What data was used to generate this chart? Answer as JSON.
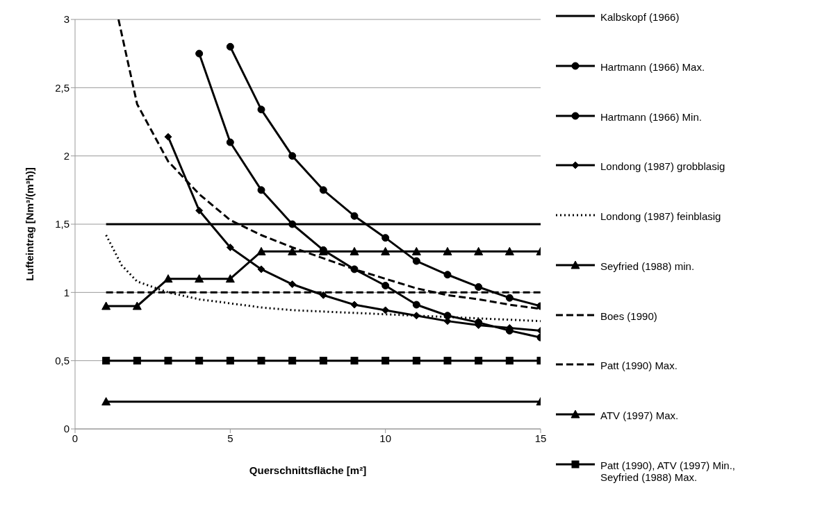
{
  "chart_data": {
    "type": "line",
    "xlabel": "Querschnittsfläche [m²]",
    "ylabel": "Lufteintrag [Nm³/(m³h)]",
    "xlim": [
      0,
      15
    ],
    "xticks": [
      0,
      5,
      10,
      15
    ],
    "ylim": [
      0,
      3
    ],
    "yticks": [
      0,
      {
        "value": 0.5,
        "label": "0,5"
      },
      1,
      {
        "value": 1.5,
        "label": "1,5"
      },
      2,
      {
        "value": 2.5,
        "label": "2,5"
      },
      3
    ],
    "grid": "y",
    "legend": "right",
    "series": [
      {
        "name": "Kalbskopf (1966)",
        "color": "#000000",
        "x": [
          1,
          15
        ],
        "values": [
          1.5,
          1.5
        ],
        "marker": "none",
        "line_style": "solid"
      },
      {
        "name": "Hartmann (1966) Max.",
        "color": "#000000",
        "x": [
          5,
          6,
          7,
          8,
          9,
          10,
          11,
          12,
          13,
          14,
          15
        ],
        "values": [
          2.8,
          2.34,
          2.0,
          1.75,
          1.56,
          1.4,
          1.23,
          1.13,
          1.04,
          0.96,
          0.9
        ],
        "marker": "circle",
        "line_style": "solid"
      },
      {
        "name": "Hartmann (1966) Min.",
        "color": "#000000",
        "x": [
          4,
          5,
          6,
          7,
          8,
          9,
          10,
          11,
          12,
          13,
          14,
          15
        ],
        "values": [
          2.75,
          2.1,
          1.75,
          1.5,
          1.31,
          1.17,
          1.05,
          0.91,
          0.83,
          0.78,
          0.72,
          0.67
        ],
        "marker": "circle",
        "line_style": "solid"
      },
      {
        "name": "Londong (1987) grobblasig",
        "color": "#000000",
        "x": [
          3,
          4,
          5,
          6,
          7,
          8,
          9,
          10,
          11,
          12,
          13,
          14,
          15
        ],
        "values": [
          2.14,
          1.6,
          1.33,
          1.17,
          1.06,
          0.98,
          0.91,
          0.87,
          0.83,
          0.79,
          0.76,
          0.74,
          0.72
        ],
        "marker": "diamond",
        "line_style": "solid"
      },
      {
        "name": "Londong (1987) feinblasig",
        "color": "#000000",
        "x": [
          1,
          1.5,
          2,
          3,
          4,
          5,
          6,
          7,
          8,
          9,
          10,
          11,
          12,
          13,
          14,
          15
        ],
        "values": [
          1.42,
          1.2,
          1.08,
          1.0,
          0.95,
          0.92,
          0.89,
          0.87,
          0.86,
          0.85,
          0.84,
          0.83,
          0.82,
          0.81,
          0.8,
          0.79
        ],
        "marker": "none",
        "line_style": "dotted"
      },
      {
        "name": "Seyfried (1988) min.",
        "color": "#000000",
        "x": [
          1,
          15
        ],
        "values": [
          0.2,
          0.2
        ],
        "marker": "triangle",
        "line_style": "solid"
      },
      {
        "name": "Boes (1990)",
        "color": "#000000",
        "x": [
          1.4,
          2,
          3,
          4,
          5,
          6,
          7,
          8,
          9,
          10,
          11,
          12,
          13,
          14,
          15
        ],
        "values": [
          3,
          2.38,
          1.96,
          1.72,
          1.53,
          1.42,
          1.33,
          1.25,
          1.17,
          1.1,
          1.03,
          0.98,
          0.95,
          0.91,
          0.88
        ],
        "marker": "none",
        "line_style": "dashed"
      },
      {
        "name": "Patt (1990) Max.",
        "color": "#000000",
        "x": [
          1,
          15
        ],
        "values": [
          1,
          1
        ],
        "marker": "none",
        "line_style": "dashed"
      },
      {
        "name": "ATV (1997) Max.",
        "color": "#000000",
        "x": [
          1,
          2,
          3,
          4,
          5,
          6,
          7,
          8,
          9,
          10,
          11,
          12,
          13,
          14,
          15
        ],
        "values": [
          0.9,
          0.9,
          1.1,
          1.1,
          1.1,
          1.3,
          1.3,
          1.3,
          1.3,
          1.3,
          1.3,
          1.3,
          1.3,
          1.3,
          1.3
        ],
        "marker": "triangle",
        "line_style": "solid"
      },
      {
        "name": "Patt (1990), ATV (1997) Min., Seyfried (1988) Max.",
        "color": "#000000",
        "x": [
          1,
          2,
          3,
          4,
          5,
          6,
          7,
          8,
          9,
          10,
          11,
          12,
          13,
          14,
          15
        ],
        "values": [
          0.5,
          0.5,
          0.5,
          0.5,
          0.5,
          0.5,
          0.5,
          0.5,
          0.5,
          0.5,
          0.5,
          0.5,
          0.5,
          0.5,
          0.5
        ],
        "marker": "square",
        "line_style": "solid"
      }
    ]
  }
}
